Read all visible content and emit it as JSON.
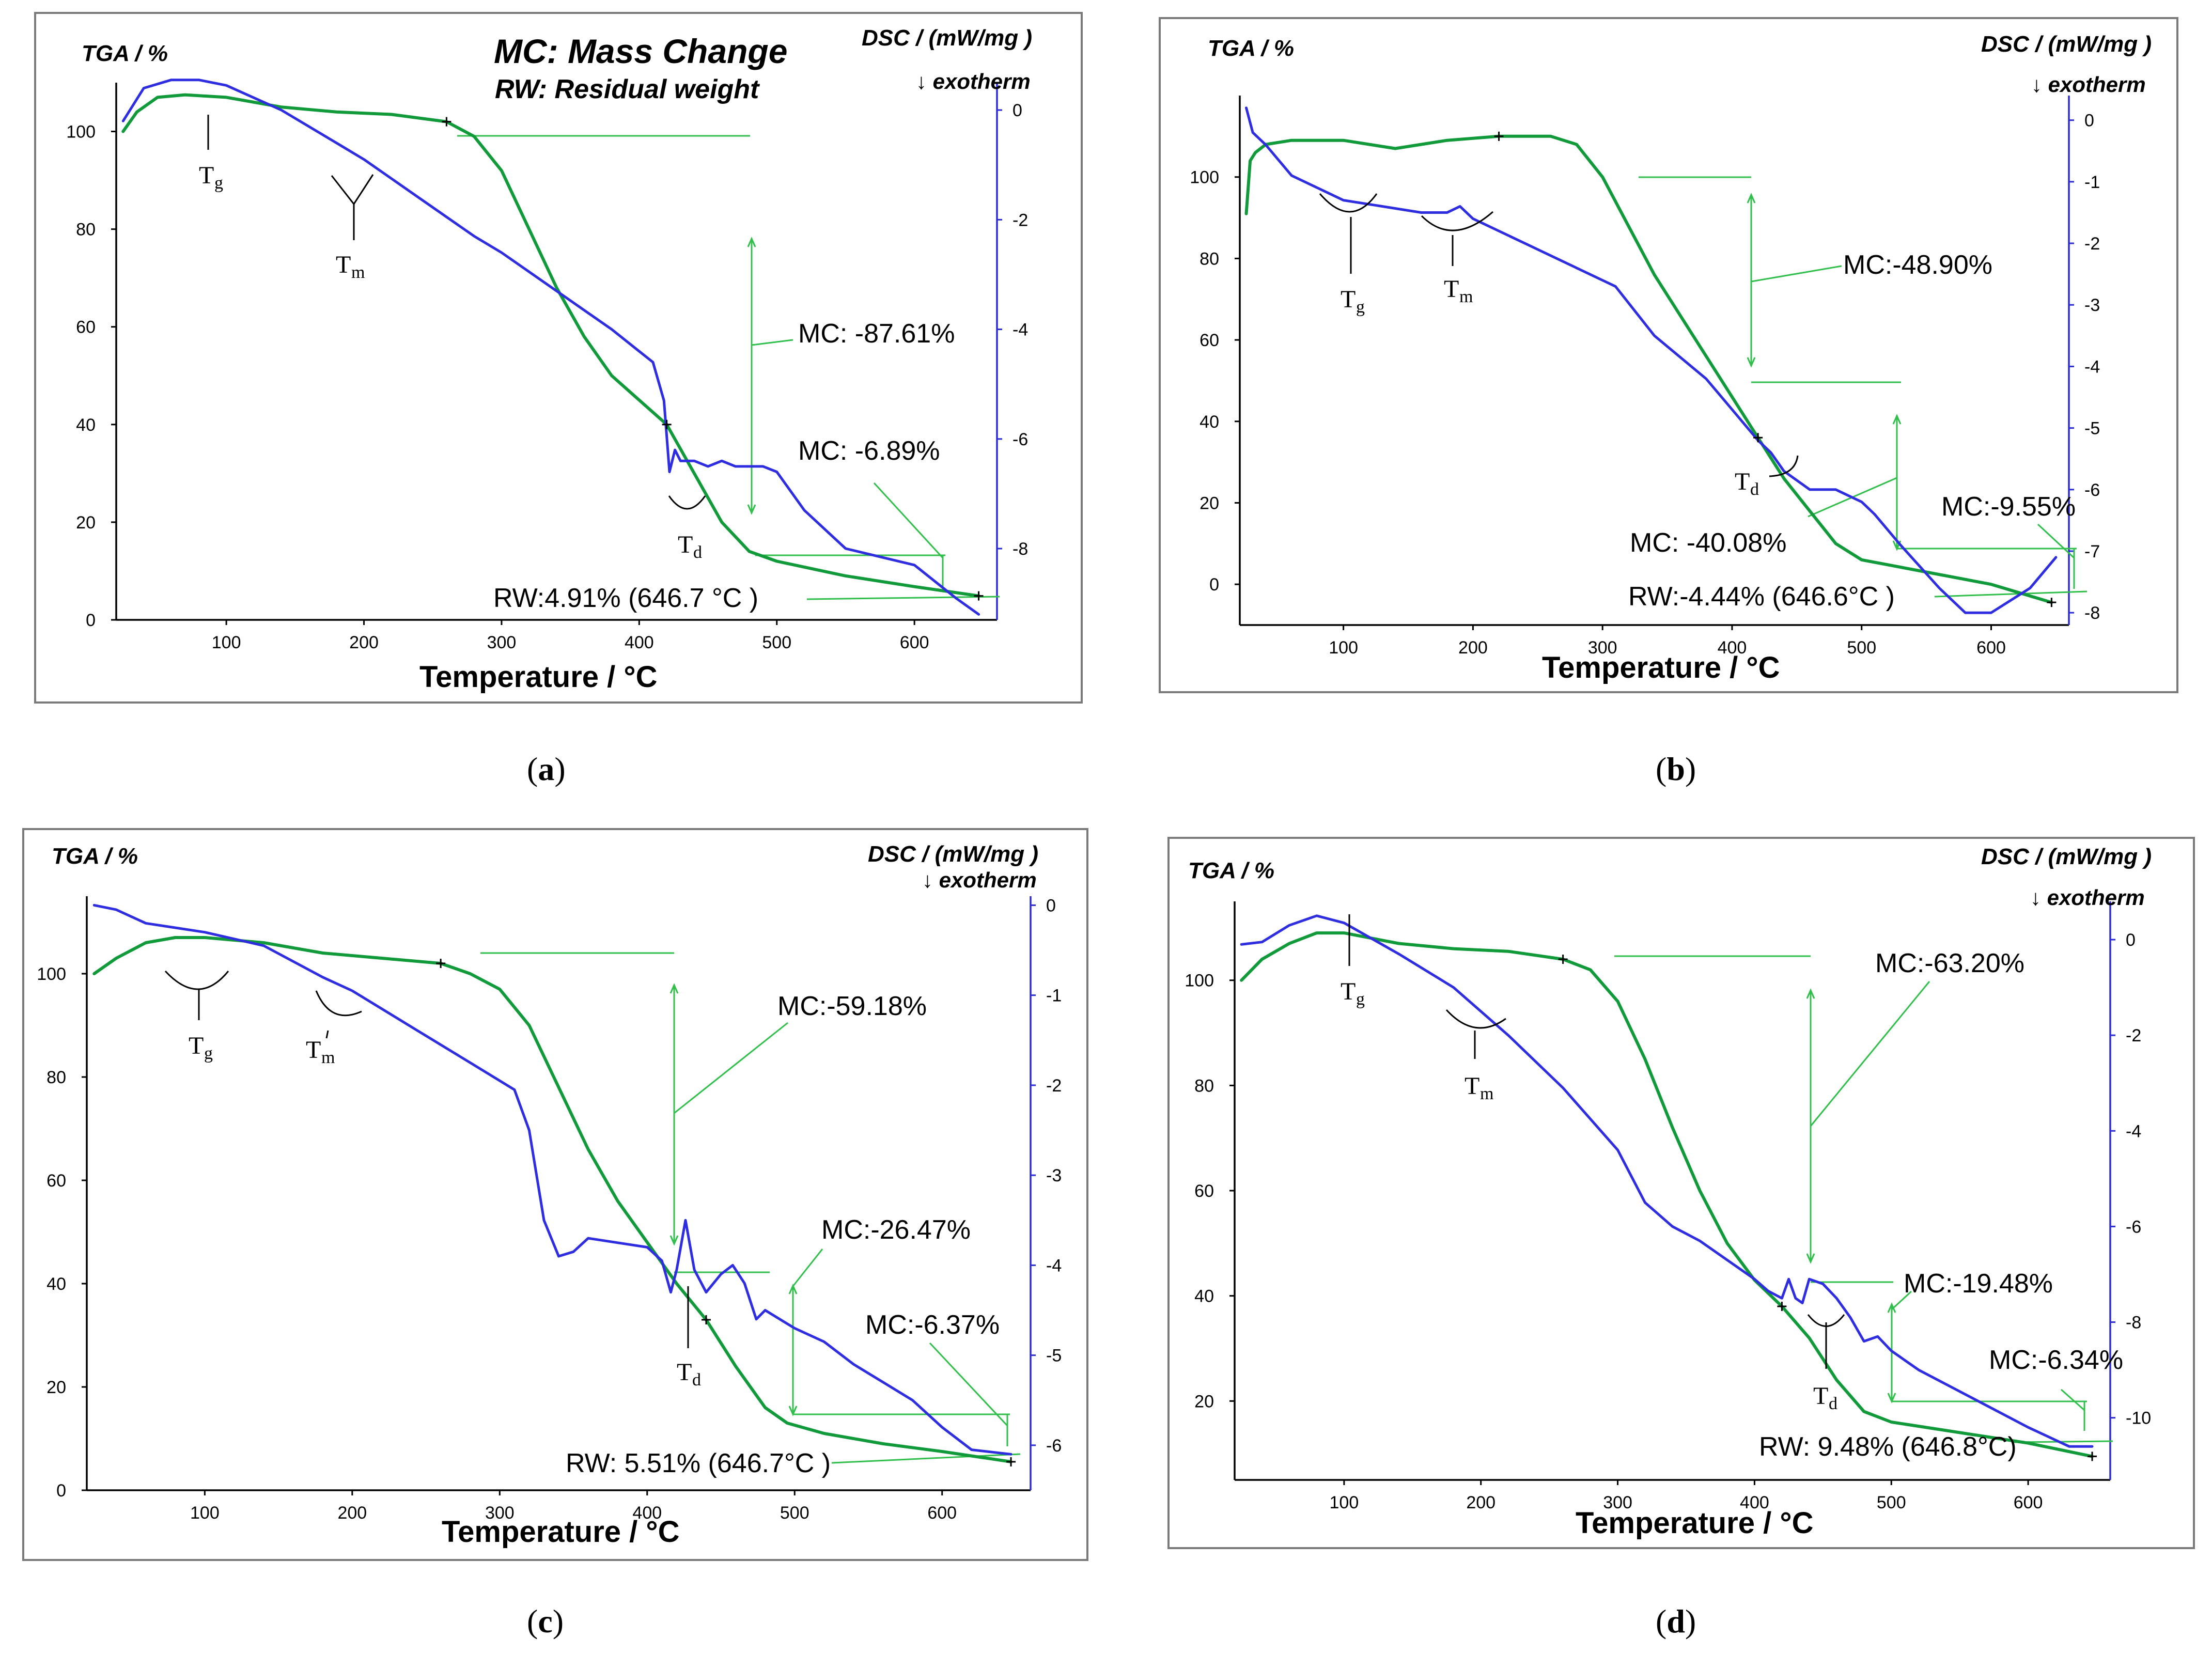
{
  "colors": {
    "tga": "#119a3a",
    "dsc": "#2e2ee0",
    "guide": "#2fbf4a",
    "frame": "#7a7a7a"
  },
  "labels": {
    "tga_axis": "TGA / %",
    "dsc_axis": "DSC / (mW/mg )",
    "exotherm": "↓ exotherm",
    "x_title": "Temperature / °C",
    "legend_mc": "MC: Mass Change",
    "legend_rw": "RW:  Residual weight"
  },
  "chart_data": [
    {
      "id": "a",
      "type": "line",
      "caption_open": "(",
      "caption_letter": "a",
      "caption_close": ")",
      "title": "MC: Mass Change / RW: Residual weight",
      "xlabel": "Temperature / °C",
      "ylabel": "TGA / %",
      "y2label": "DSC / (mW/mg )",
      "xlim": [
        20,
        660
      ],
      "ylim": [
        0,
        110
      ],
      "y2lim": [
        -9.3,
        0.5
      ],
      "xticks": [
        100,
        200,
        300,
        400,
        500,
        600
      ],
      "yticks": [
        0,
        20,
        40,
        60,
        80,
        100
      ],
      "y2ticks": [
        0,
        -2,
        -4,
        -6,
        -8
      ],
      "series": [
        {
          "name": "TGA",
          "axis": "left",
          "x": [
            25,
            35,
            50,
            70,
            100,
            140,
            180,
            220,
            260,
            280,
            300,
            320,
            340,
            360,
            380,
            400,
            420,
            440,
            460,
            480,
            500,
            550,
            600,
            646.7
          ],
          "y": [
            100,
            104,
            107,
            107.5,
            107,
            105,
            104,
            103.5,
            102,
            99,
            92,
            80,
            68,
            58,
            50,
            45,
            40,
            30,
            20,
            14,
            12,
            9,
            6.8,
            4.91
          ]
        },
        {
          "name": "DSC",
          "axis": "right",
          "x": [
            25,
            40,
            60,
            80,
            100,
            140,
            180,
            200,
            240,
            280,
            300,
            340,
            380,
            400,
            410,
            418,
            422,
            426,
            430,
            440,
            450,
            460,
            470,
            480,
            490,
            500,
            520,
            550,
            600,
            630,
            646.7
          ],
          "y": [
            -0.2,
            0.4,
            0.55,
            0.55,
            0.45,
            0.0,
            -0.6,
            -0.9,
            -1.6,
            -2.3,
            -2.6,
            -3.3,
            -4.0,
            -4.4,
            -4.6,
            -5.3,
            -6.6,
            -6.2,
            -6.4,
            -6.4,
            -6.5,
            -6.4,
            -6.5,
            -6.5,
            -6.5,
            -6.6,
            -7.3,
            -8.0,
            -8.3,
            -8.9,
            -9.2
          ]
        }
      ],
      "annotations": [
        {
          "text": "MC: -87.61%"
        },
        {
          "text": "MC: -6.89%"
        },
        {
          "text": "RW:4.91% (646.7 °C )"
        }
      ],
      "markers": [
        {
          "symbol": "T",
          "sub": "g"
        },
        {
          "symbol": "T",
          "sub": "m"
        },
        {
          "symbol": "T",
          "sub": "d"
        }
      ]
    },
    {
      "id": "b",
      "type": "line",
      "caption_open": "(",
      "caption_letter": "b",
      "caption_close": ")",
      "xlabel": "Temperature / °C",
      "ylabel": "TGA / %",
      "y2label": "DSC / (mW/mg )",
      "xlim": [
        20,
        660
      ],
      "ylim": [
        -10,
        120
      ],
      "y2lim": [
        -8.2,
        0.4
      ],
      "xticks": [
        100,
        200,
        300,
        400,
        500,
        600
      ],
      "yticks": [
        0,
        20,
        40,
        60,
        80,
        100
      ],
      "y2ticks": [
        0,
        -1,
        -2,
        -3,
        -4,
        -5,
        -6,
        -7,
        -8
      ],
      "series": [
        {
          "name": "TGA",
          "axis": "left",
          "x": [
            25,
            28,
            32,
            40,
            60,
            100,
            140,
            180,
            220,
            260,
            280,
            300,
            320,
            340,
            360,
            380,
            400,
            420,
            440,
            460,
            480,
            500,
            550,
            600,
            646.6
          ],
          "y": [
            91,
            104,
            106,
            108,
            109,
            109,
            107,
            109,
            110,
            110,
            108,
            100,
            88,
            76,
            66,
            56,
            46,
            36,
            26,
            18,
            10,
            6,
            3,
            0,
            -4.44
          ]
        },
        {
          "name": "DSC",
          "axis": "right",
          "x": [
            25,
            30,
            40,
            60,
            80,
            100,
            130,
            160,
            180,
            190,
            200,
            240,
            280,
            310,
            340,
            380,
            400,
            420,
            430,
            440,
            460,
            480,
            500,
            510,
            530,
            560,
            580,
            600,
            630,
            650
          ],
          "y": [
            0.2,
            -0.2,
            -0.4,
            -0.9,
            -1.1,
            -1.3,
            -1.4,
            -1.5,
            -1.5,
            -1.4,
            -1.6,
            -2.0,
            -2.4,
            -2.7,
            -3.5,
            -4.2,
            -4.7,
            -5.2,
            -5.4,
            -5.7,
            -6.0,
            -6.0,
            -6.2,
            -6.4,
            -6.9,
            -7.6,
            -8.0,
            -8.0,
            -7.6,
            -7.1
          ]
        }
      ],
      "annotations": [
        {
          "text": "MC:-48.90%"
        },
        {
          "text": "MC: -40.08%"
        },
        {
          "text": "MC:-9.55%"
        },
        {
          "text": "RW:-4.44% (646.6°C )"
        }
      ],
      "markers": [
        {
          "symbol": "T",
          "sub": "g"
        },
        {
          "symbol": "T",
          "sub": "m"
        },
        {
          "symbol": "T",
          "sub": "d"
        }
      ]
    },
    {
      "id": "c",
      "type": "line",
      "caption_open": "(",
      "caption_letter": "c",
      "caption_close": ")",
      "xlabel": "Temperature / °C",
      "ylabel": "TGA / %",
      "y2label": "DSC / (mW/mg )",
      "xlim": [
        20,
        660
      ],
      "ylim": [
        0,
        115
      ],
      "y2lim": [
        -6.5,
        0.1
      ],
      "xticks": [
        100,
        200,
        300,
        400,
        500,
        600
      ],
      "yticks": [
        0,
        20,
        40,
        60,
        80,
        100
      ],
      "y2ticks": [
        0,
        -1,
        -2,
        -3,
        -4,
        -5,
        -6
      ],
      "series": [
        {
          "name": "TGA",
          "axis": "left",
          "x": [
            25,
            40,
            60,
            80,
            100,
            140,
            180,
            220,
            260,
            280,
            300,
            320,
            340,
            360,
            380,
            400,
            420,
            440,
            460,
            480,
            495,
            520,
            560,
            600,
            646.7
          ],
          "y": [
            100,
            103,
            106,
            107,
            107,
            106,
            104,
            103,
            102,
            100,
            97,
            90,
            78,
            66,
            56,
            48,
            40,
            33,
            24,
            16,
            13,
            11,
            9,
            7.5,
            5.51
          ]
        },
        {
          "name": "DSC",
          "axis": "right",
          "x": [
            25,
            40,
            60,
            80,
            100,
            140,
            180,
            200,
            240,
            280,
            310,
            320,
            330,
            340,
            350,
            360,
            380,
            400,
            410,
            416,
            420,
            426,
            432,
            440,
            450,
            458,
            466,
            474,
            480,
            500,
            520,
            540,
            560,
            580,
            600,
            620,
            646.7
          ],
          "y": [
            0.0,
            -0.05,
            -0.2,
            -0.25,
            -0.3,
            -0.45,
            -0.8,
            -0.95,
            -1.35,
            -1.75,
            -2.05,
            -2.5,
            -3.5,
            -3.9,
            -3.85,
            -3.7,
            -3.75,
            -3.8,
            -3.95,
            -4.3,
            -4.05,
            -3.5,
            -4.05,
            -4.3,
            -4.1,
            -4.0,
            -4.2,
            -4.6,
            -4.5,
            -4.7,
            -4.85,
            -5.1,
            -5.3,
            -5.5,
            -5.8,
            -6.05,
            -6.1
          ]
        }
      ],
      "annotations": [
        {
          "text": "MC:-59.18%"
        },
        {
          "text": "MC:-26.47%"
        },
        {
          "text": "MC:-6.37%"
        },
        {
          "text": "RW: 5.51% (646.7°C )"
        }
      ],
      "markers": [
        {
          "symbol": "T",
          "sub": "g"
        },
        {
          "symbol": "T",
          "sub": "m"
        },
        {
          "symbol": "T",
          "sub": "d"
        }
      ]
    },
    {
      "id": "d",
      "type": "line",
      "caption_open": "(",
      "caption_letter": "d",
      "caption_close": ")",
      "xlabel": "Temperature / °C",
      "ylabel": "TGA / %",
      "y2label": "DSC / (mW/mg )",
      "xlim": [
        20,
        660
      ],
      "ylim": [
        5,
        115
      ],
      "y2lim": [
        -11.3,
        0.8
      ],
      "xticks": [
        100,
        200,
        300,
        400,
        500,
        600
      ],
      "yticks": [
        20,
        40,
        60,
        80,
        100
      ],
      "y2ticks": [
        0,
        -2,
        -4,
        -6,
        -8,
        -10
      ],
      "series": [
        {
          "name": "TGA",
          "axis": "left",
          "x": [
            25,
            40,
            60,
            80,
            100,
            140,
            180,
            220,
            260,
            280,
            300,
            320,
            340,
            360,
            380,
            400,
            420,
            440,
            460,
            480,
            500,
            550,
            600,
            646.8
          ],
          "y": [
            100,
            104,
            107,
            109,
            109,
            107,
            106,
            105.5,
            104,
            102,
            96,
            85,
            72,
            60,
            50,
            43,
            38,
            32,
            24,
            18,
            16,
            14,
            12,
            9.48
          ]
        },
        {
          "name": "DSC",
          "axis": "right",
          "x": [
            25,
            40,
            60,
            80,
            100,
            140,
            180,
            220,
            260,
            300,
            320,
            330,
            340,
            360,
            380,
            400,
            410,
            420,
            425,
            430,
            435,
            440,
            450,
            460,
            470,
            480,
            490,
            500,
            520,
            560,
            600,
            630,
            646.8
          ],
          "y": [
            -0.1,
            -0.05,
            0.3,
            0.5,
            0.35,
            -0.3,
            -1.0,
            -2.0,
            -3.1,
            -4.4,
            -5.5,
            -5.75,
            -6.0,
            -6.3,
            -6.7,
            -7.1,
            -7.35,
            -7.5,
            -7.1,
            -7.5,
            -7.6,
            -7.1,
            -7.2,
            -7.5,
            -7.9,
            -8.4,
            -8.3,
            -8.6,
            -9.0,
            -9.6,
            -10.2,
            -10.6,
            -10.6
          ]
        }
      ],
      "annotations": [
        {
          "text": "MC:-63.20%"
        },
        {
          "text": "MC:-19.48%"
        },
        {
          "text": "MC:-6.34%"
        },
        {
          "text": "RW: 9.48% (646.8°C)"
        }
      ],
      "markers": [
        {
          "symbol": "T",
          "sub": "g"
        },
        {
          "symbol": "T",
          "sub": "m"
        },
        {
          "symbol": "T",
          "sub": "d"
        }
      ]
    }
  ]
}
